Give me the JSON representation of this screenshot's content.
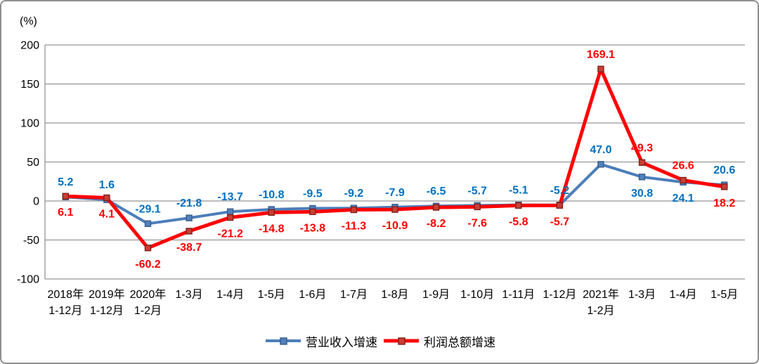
{
  "chart_data": {
    "type": "line",
    "unit_label": "(%)",
    "categories": [
      [
        "2018年",
        "1-12月"
      ],
      [
        "2019年",
        "1-12月"
      ],
      [
        "2020年",
        "1-2月"
      ],
      [
        "1-3月"
      ],
      [
        "1-4月"
      ],
      [
        "1-5月"
      ],
      [
        "1-6月"
      ],
      [
        "1-7月"
      ],
      [
        "1-8月"
      ],
      [
        "1-9月"
      ],
      [
        "1-10月"
      ],
      [
        "1-11月"
      ],
      [
        "1-12月"
      ],
      [
        "2021年",
        "1-2月"
      ],
      [
        "1-3月"
      ],
      [
        "1-4月"
      ],
      [
        "1-5月"
      ]
    ],
    "series": [
      {
        "name": "营业收入增速",
        "color": "#4C7EBB",
        "marker_fill": "#4F81BD",
        "marker_stroke": "#3B5E8C",
        "label_color": "#0070C0",
        "line_width": 4,
        "values": [
          5.2,
          1.6,
          -29.1,
          -21.8,
          -13.7,
          -10.8,
          -9.5,
          -9.2,
          -7.9,
          -6.5,
          -5.7,
          -5.1,
          -5.2,
          47.0,
          30.8,
          24.1,
          20.6
        ],
        "label_pos": [
          "above",
          "above",
          "above",
          "above",
          "above",
          "above",
          "above",
          "above",
          "above",
          "above",
          "above",
          "above",
          "above",
          "above",
          "below",
          "below",
          "above"
        ]
      },
      {
        "name": "利润总额增速",
        "color": "#FE0000",
        "marker_fill": "#CC3D33",
        "marker_stroke": "#7E221C",
        "label_color": "#FF0000",
        "line_width": 5,
        "values": [
          6.1,
          4.1,
          -60.2,
          -38.7,
          -21.2,
          -14.8,
          -13.8,
          -11.3,
          -10.9,
          -8.2,
          -7.6,
          -5.8,
          -5.7,
          169.1,
          49.3,
          26.6,
          18.2
        ],
        "label_pos": [
          "below",
          "below",
          "below",
          "below",
          "below",
          "below",
          "below",
          "below",
          "below",
          "below",
          "below",
          "below",
          "below",
          "above",
          "above",
          "above",
          "below"
        ]
      }
    ],
    "ylim": [
      -100,
      200
    ],
    "yticks": [
      200,
      150,
      100,
      50,
      0,
      -50,
      -100
    ],
    "grid": true,
    "gridline_color": "#969696",
    "axis_text_color": "#000000",
    "legend_position": "bottom"
  }
}
